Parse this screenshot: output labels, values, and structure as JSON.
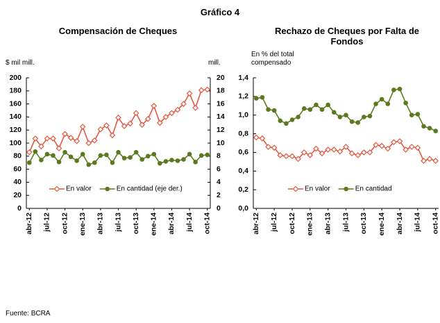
{
  "title": "Gráfico 4",
  "source": "Fuente: BCRA",
  "chart_data": [
    {
      "type": "line",
      "title": "Compensación de Cheques",
      "y_label": "$ mil mill.",
      "y2_label": "mill.",
      "categories": [
        "abr-12",
        null,
        null,
        "jul-12",
        null,
        null,
        "oct-12",
        null,
        null,
        "ene-13",
        null,
        null,
        "abr-13",
        null,
        null,
        "jul-13",
        null,
        null,
        "oct-13",
        null,
        null,
        "ene-14",
        null,
        null,
        "abr-14",
        null,
        null,
        "jul-14",
        null,
        null,
        "oct-14"
      ],
      "series": [
        {
          "name": "En valor",
          "color": "#e2583e",
          "marker": "diamond",
          "axis": "y",
          "values": [
            86,
            107,
            95,
            107,
            107,
            92,
            114,
            108,
            103,
            125,
            100,
            104,
            121,
            127,
            112,
            139,
            126,
            130,
            146,
            128,
            137,
            157,
            131,
            140,
            146,
            151,
            160,
            176,
            154,
            181,
            182
          ]
        },
        {
          "name": "En cantidad (eje der.)",
          "color": "#5b7a1f",
          "marker": "circle",
          "axis": "y2",
          "values": [
            7.0,
            8.7,
            7.4,
            8.3,
            8.1,
            7.1,
            8.6,
            7.9,
            7.3,
            8.3,
            6.7,
            7.0,
            8.1,
            8.2,
            7.0,
            8.6,
            7.7,
            7.8,
            8.6,
            7.5,
            8.0,
            8.3,
            6.9,
            7.2,
            7.4,
            7.3,
            7.5,
            8.3,
            7.1,
            8.1,
            8.2
          ]
        }
      ],
      "ylim": [
        0,
        200
      ],
      "yticks": [
        0,
        20,
        40,
        60,
        80,
        100,
        120,
        140,
        160,
        180,
        200
      ],
      "y2lim": [
        0,
        20
      ],
      "y2ticks": [
        0,
        2,
        4,
        6,
        8,
        10,
        12,
        14,
        16,
        18,
        20
      ],
      "legend": "bottom"
    },
    {
      "type": "line",
      "title": "Rechazo de Cheques por Falta de Fondos",
      "y_label": "En % del total compensado",
      "categories": [
        "abr-12",
        null,
        null,
        "jul-12",
        null,
        null,
        "oct-12",
        null,
        null,
        "ene-13",
        null,
        null,
        "abr-13",
        null,
        null,
        "jul-13",
        null,
        null,
        "oct-13",
        null,
        null,
        "ene-14",
        null,
        null,
        "abr-14",
        null,
        null,
        "jul-14",
        null,
        null,
        "oct-14"
      ],
      "series": [
        {
          "name": "En valor",
          "color": "#e2583e",
          "marker": "diamond",
          "axis": "y",
          "values": [
            0.76,
            0.75,
            0.66,
            0.65,
            0.57,
            0.56,
            0.56,
            0.53,
            0.6,
            0.57,
            0.64,
            0.59,
            0.63,
            0.63,
            0.61,
            0.66,
            0.59,
            0.57,
            0.6,
            0.6,
            0.68,
            0.67,
            0.64,
            0.71,
            0.72,
            0.63,
            0.66,
            0.65,
            0.51,
            0.53,
            0.51
          ]
        },
        {
          "name": "En cantidad",
          "color": "#5b7a1f",
          "marker": "circle",
          "axis": "y",
          "values": [
            1.18,
            1.19,
            1.06,
            1.05,
            0.94,
            0.91,
            0.95,
            0.98,
            1.07,
            1.06,
            1.11,
            1.06,
            1.11,
            1.03,
            0.98,
            1.0,
            0.93,
            0.92,
            0.98,
            0.99,
            1.12,
            1.17,
            1.12,
            1.27,
            1.28,
            1.13,
            1.0,
            1.01,
            0.88,
            0.86,
            0.83
          ]
        }
      ],
      "ylim": [
        0,
        1.4
      ],
      "yticks": [
        {
          "value": 0,
          "label": "0,0"
        },
        {
          "value": 0.2,
          "label": "0,2"
        },
        {
          "value": 0.4,
          "label": "0,4"
        },
        {
          "value": 0.6,
          "label": "0,6"
        },
        {
          "value": 0.8,
          "label": "0,8"
        },
        {
          "value": 1.0,
          "label": "1,0"
        },
        {
          "value": 1.2,
          "label": "1,2"
        },
        {
          "value": 1.4,
          "label": "1,4"
        }
      ],
      "legend": "bottom"
    }
  ]
}
